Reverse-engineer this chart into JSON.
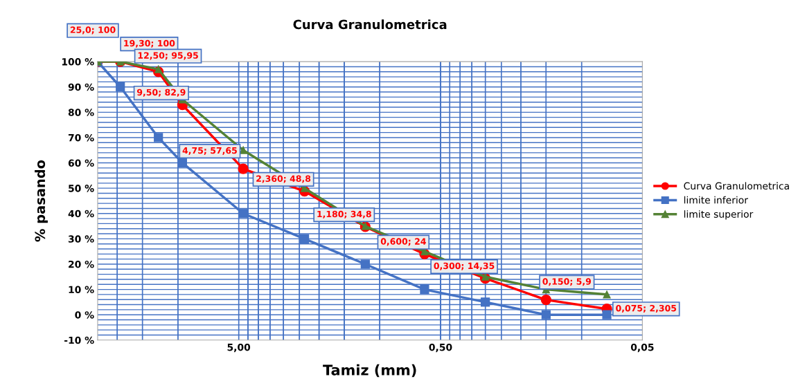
{
  "chart_data": {
    "type": "line",
    "title": "Curva Granulometrica",
    "xlabel": "Tamiz (mm)",
    "ylabel": "% pasando",
    "x": [
      25,
      19.3,
      12.5,
      9.5,
      4.75,
      2.36,
      1.18,
      0.6,
      0.3,
      0.15,
      0.075
    ],
    "series": [
      {
        "name": "Curva Granulometrica",
        "color": "#ff0000",
        "marker": "circle",
        "values": [
          100,
          100,
          95.95,
          82.9,
          57.65,
          48.8,
          34.8,
          24,
          14.35,
          5.9,
          2.305
        ],
        "value_labels": [
          "25,0; 100",
          "19,30; 100",
          "12,50; 95,95",
          "9,50; 82,9",
          "4,75; 57,65",
          "2,360; 48,8",
          "1,180; 34,8",
          "0,600; 24",
          "0,300; 14,35",
          "0,150; 5,9",
          "0,075; 2,305"
        ]
      },
      {
        "name": "limite inferior",
        "color": "#4472c4",
        "marker": "square",
        "values": [
          100,
          90,
          70,
          60,
          40,
          30,
          20,
          10,
          5,
          0,
          0
        ]
      },
      {
        "name": "limite superior",
        "color": "#548235",
        "marker": "triangle",
        "values": [
          100,
          100,
          97,
          85,
          65,
          50,
          35,
          25,
          15,
          10,
          8
        ]
      }
    ],
    "log": "x",
    "xlim": [
      25,
      0.05
    ],
    "xticks": [
      {
        "value": 5,
        "label": "5,00"
      },
      {
        "value": 0.5,
        "label": "0,50"
      },
      {
        "value": 0.05,
        "label": "0,05"
      }
    ],
    "ylim": [
      -10,
      100
    ],
    "yticks": [
      {
        "value": -10,
        "label": "-10 %"
      },
      {
        "value": 0,
        "label": "0 %"
      },
      {
        "value": 10,
        "label": "10 %"
      },
      {
        "value": 20,
        "label": "20 %"
      },
      {
        "value": 30,
        "label": "30 %"
      },
      {
        "value": 40,
        "label": "40 %"
      },
      {
        "value": 50,
        "label": "50 %"
      },
      {
        "value": 60,
        "label": "60 %"
      },
      {
        "value": 70,
        "label": "70 %"
      },
      {
        "value": 80,
        "label": "80 %"
      },
      {
        "value": 90,
        "label": "90 %"
      },
      {
        "value": 100,
        "label": "100 %"
      }
    ],
    "grid": true,
    "legend": "right",
    "line_style": "solid"
  }
}
